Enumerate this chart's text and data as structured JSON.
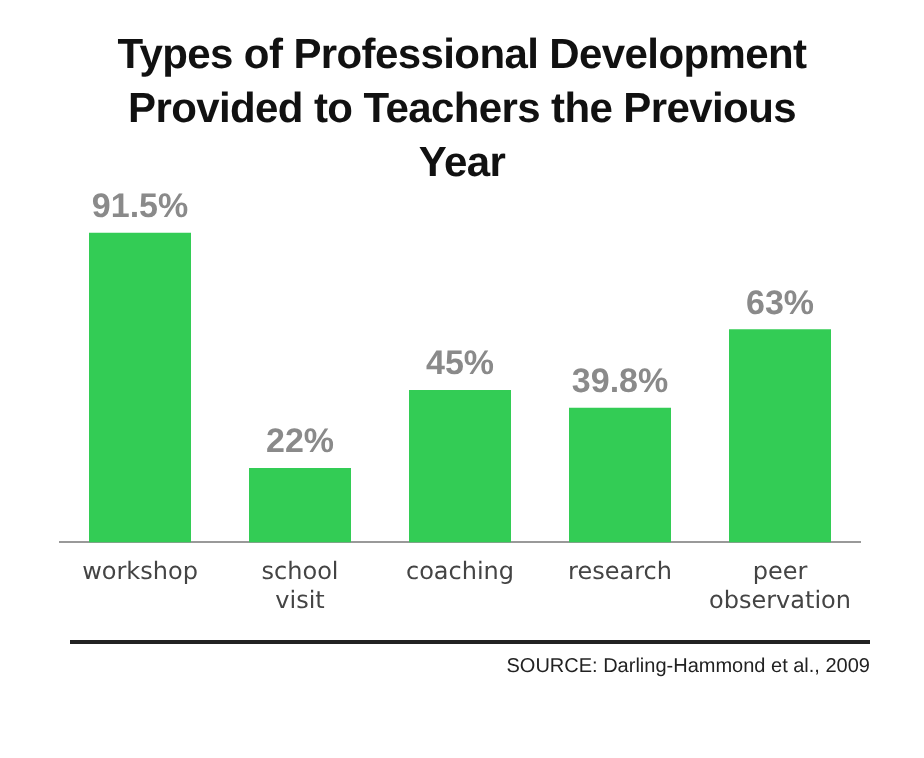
{
  "chart_data": {
    "type": "bar",
    "title": "Types of Professional Development Provided to Teachers the Previous Year",
    "categories": [
      "workshop",
      "school visit",
      "coaching",
      "research",
      "peer observation"
    ],
    "values": [
      91.5,
      22,
      45,
      39.8,
      63
    ],
    "value_labels": [
      "91.5%",
      "22%",
      "45%",
      "39.8%",
      "63%"
    ],
    "color": "#33cc55",
    "annotations": [
      "SOURCE: Darling-Hammond et al., 2009"
    ],
    "grid": false,
    "legend": false
  }
}
